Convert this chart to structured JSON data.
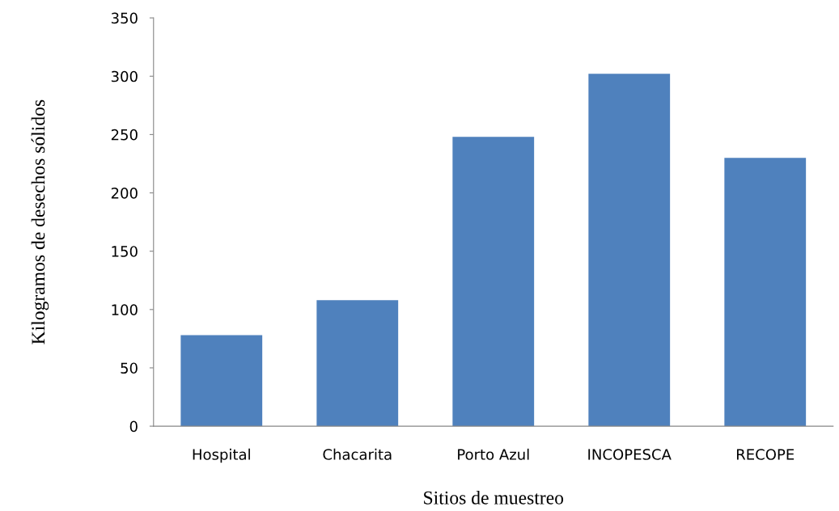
{
  "chart_data": {
    "type": "bar",
    "xlabel": "Sitios de muestreo",
    "ylabel": "Kilogramos de desechos sólidos",
    "categories": [
      "Hospital",
      "Chacarita",
      "Porto Azul",
      "INCOPESCA",
      "RECOPE"
    ],
    "values": [
      78,
      108,
      248,
      302,
      230
    ],
    "color": "#4f81bd",
    "ylim": [
      0,
      350
    ],
    "yticks": [
      0,
      50,
      100,
      150,
      200,
      250,
      300,
      350
    ],
    "grid": false,
    "legend": false
  }
}
